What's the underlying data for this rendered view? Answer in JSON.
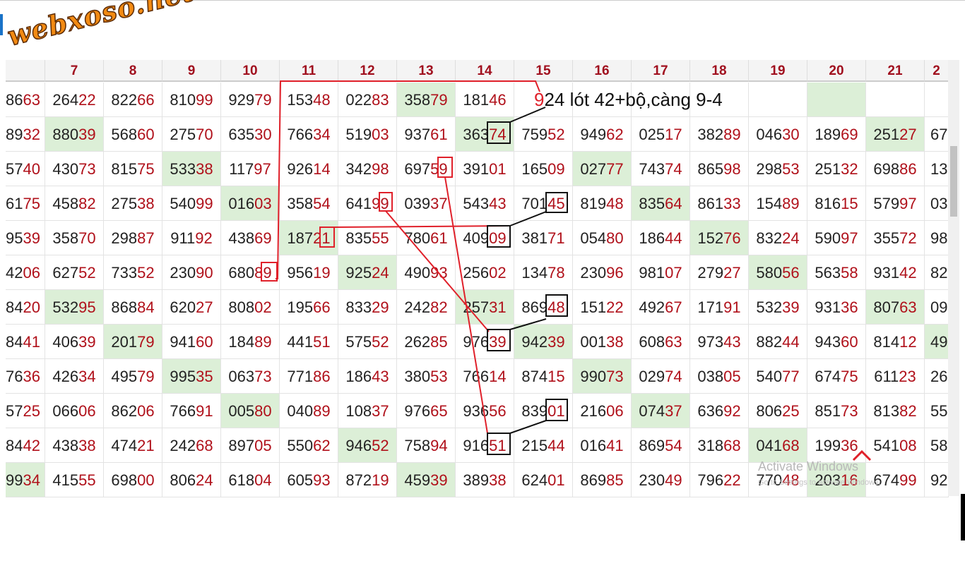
{
  "header": {
    "logo": "webxoso.net"
  },
  "table": {
    "columns": [
      "7",
      "8",
      "9",
      "10",
      "11",
      "12",
      "13",
      "14",
      "15",
      "16",
      "17",
      "18",
      "19",
      "20",
      "21",
      "2"
    ],
    "rows": [
      [
        "8663",
        "26422",
        "82266",
        "81099",
        "92979",
        "15348",
        "02283",
        "35879",
        "18146",
        null,
        null,
        null,
        null,
        null,
        null,
        null,
        null
      ],
      [
        "8932",
        "88039",
        "56860",
        "27570",
        "63530",
        "76634",
        "51903",
        "93761",
        "36374",
        "75952",
        "94962",
        "02517",
        "38289",
        "04630",
        "18969",
        "25127",
        "67"
      ],
      [
        "5740",
        "43073",
        "81575",
        "53338",
        "11797",
        "92614",
        "34298",
        "69759",
        "39101",
        "16509",
        "02777",
        "74374",
        "86598",
        "29853",
        "25132",
        "69886",
        "13"
      ],
      [
        "6175",
        "45882",
        "27538",
        "54099",
        "01603",
        "35854",
        "64199",
        "03937",
        "54343",
        "70145",
        "81948",
        "83564",
        "86133",
        "15489",
        "81615",
        "57997",
        "03"
      ],
      [
        "9539",
        "35870",
        "29887",
        "91192",
        "43869",
        "18721",
        "83555",
        "78061",
        "40909",
        "38171",
        "05480",
        "18644",
        "15276",
        "83224",
        "59097",
        "35572",
        "98"
      ],
      [
        "4206",
        "62752",
        "73352",
        "23090",
        "68089",
        "95619",
        "92524",
        "49093",
        "25602",
        "13478",
        "23096",
        "98107",
        "27927",
        "58056",
        "56358",
        "93142",
        "82"
      ],
      [
        "8420",
        "53295",
        "86884",
        "62027",
        "80802",
        "19566",
        "83329",
        "24282",
        "25731",
        "86948",
        "15122",
        "49267",
        "17191",
        "53239",
        "93136",
        "80763",
        "09"
      ],
      [
        "8441",
        "40639",
        "20179",
        "94160",
        "18489",
        "44151",
        "57552",
        "26285",
        "97639",
        "94239",
        "00138",
        "60863",
        "97343",
        "88244",
        "94360",
        "81412",
        "49"
      ],
      [
        "7636",
        "42634",
        "49579",
        "99535",
        "06373",
        "77186",
        "18643",
        "38053",
        "76614",
        "87415",
        "99073",
        "02974",
        "03805",
        "54077",
        "67475",
        "61123",
        "26"
      ],
      [
        "5725",
        "06606",
        "86206",
        "76691",
        "00580",
        "04089",
        "10837",
        "97665",
        "93656",
        "83901",
        "21606",
        "07437",
        "63692",
        "80625",
        "85173",
        "81382",
        "55"
      ],
      [
        "8442",
        "43838",
        "47421",
        "24268",
        "89705",
        "55062",
        "94652",
        "75894",
        "91651",
        "21544",
        "01641",
        "86954",
        "31868",
        "04168",
        "19936",
        "54108",
        "58"
      ],
      [
        "9934",
        "41555",
        "69800",
        "80624",
        "61804",
        "60593",
        "87219",
        "45939",
        "38938",
        "62401",
        "86985",
        "23049",
        "79622",
        "77048",
        "20316",
        "67499",
        "92"
      ]
    ],
    "highlighted_cells": [
      [
        0,
        7
      ],
      [
        0,
        14
      ],
      [
        1,
        1
      ],
      [
        1,
        8
      ],
      [
        1,
        15
      ],
      [
        2,
        3
      ],
      [
        2,
        10
      ],
      [
        3,
        4
      ],
      [
        3,
        11
      ],
      [
        4,
        5
      ],
      [
        4,
        12
      ],
      [
        5,
        6
      ],
      [
        5,
        13
      ],
      [
        6,
        1
      ],
      [
        6,
        8
      ],
      [
        6,
        15
      ],
      [
        7,
        2
      ],
      [
        7,
        9
      ],
      [
        7,
        16
      ],
      [
        8,
        3
      ],
      [
        8,
        10
      ],
      [
        9,
        4
      ],
      [
        9,
        11
      ],
      [
        10,
        6
      ],
      [
        10,
        13
      ],
      [
        11,
        0
      ],
      [
        11,
        7
      ],
      [
        11,
        14
      ]
    ]
  },
  "annotation": "924 lót 42+bộ,càng 9-4",
  "watermark": {
    "title": "Activate Windows",
    "subtitle": "Go to Settings to activate Windows."
  }
}
